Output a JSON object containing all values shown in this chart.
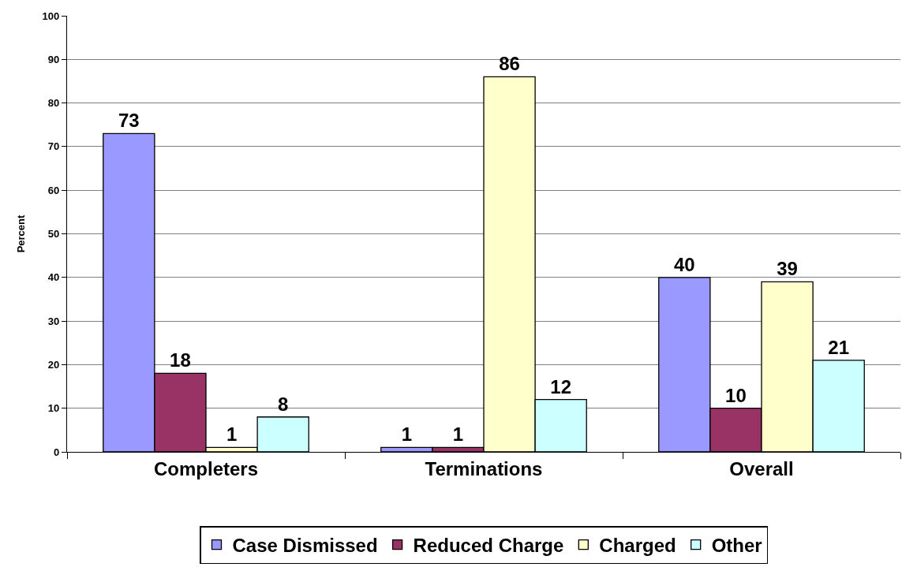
{
  "chart_data": {
    "type": "bar",
    "ylabel": "Percent",
    "categories": [
      "Completers",
      "Terminations",
      "Overall"
    ],
    "series": [
      {
        "name": "Case Dismissed",
        "color": "#9999ff",
        "values": [
          73,
          1,
          40
        ]
      },
      {
        "name": "Reduced Charge",
        "color": "#993366",
        "values": [
          18,
          1,
          10
        ]
      },
      {
        "name": "Charged",
        "color": "#ffffcc",
        "values": [
          1,
          86,
          39
        ]
      },
      {
        "name": "Other",
        "color": "#ccffff",
        "values": [
          8,
          12,
          21
        ]
      }
    ],
    "ylim": [
      0,
      100
    ],
    "yticks": [
      0,
      10,
      20,
      30,
      40,
      50,
      60,
      70,
      80,
      90,
      100
    ],
    "grid": "y",
    "legend": "bottom",
    "data_labels": true
  }
}
